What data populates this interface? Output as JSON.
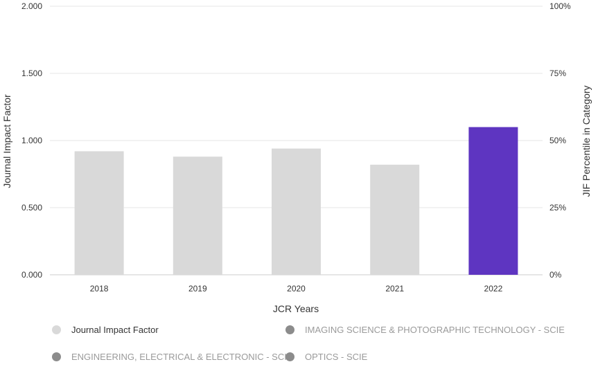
{
  "chart_data": {
    "type": "bar",
    "categories": [
      "2018",
      "2019",
      "2020",
      "2021",
      "2022"
    ],
    "series": [
      {
        "name": "Journal Impact Factor",
        "values": [
          0.92,
          0.88,
          0.94,
          0.82,
          1.1
        ]
      }
    ],
    "bar_colors": [
      "#d9d9d9",
      "#d9d9d9",
      "#d9d9d9",
      "#d9d9d9",
      "#5e35c1"
    ],
    "title": "",
    "xlabel": "JCR Years",
    "ylabel": "Journal Impact Factor",
    "ylabel_right": "JIF Percentile in Category",
    "ylim": [
      0,
      2
    ],
    "y_ticks": [
      "0.000",
      "0.500",
      "1.000",
      "1.500",
      "2.000"
    ],
    "y_ticks_right": [
      "0%",
      "25%",
      "50%",
      "75%",
      "100%"
    ],
    "grid": true,
    "legend_position": "bottom",
    "legend": [
      {
        "label": "Journal Impact Factor",
        "color": "#d9d9d9",
        "text_color": "#333333"
      },
      {
        "label": "IMAGING SCIENCE & PHOTOGRAPHIC TECHNOLOGY - SCIE",
        "color": "#8c8c8c",
        "text_color": "#9a9a9a"
      },
      {
        "label": "ENGINEERING, ELECTRICAL & ELECTRONIC - SCIE",
        "color": "#8c8c8c",
        "text_color": "#9a9a9a"
      },
      {
        "label": "OPTICS - SCIE",
        "color": "#8c8c8c",
        "text_color": "#9a9a9a"
      }
    ]
  }
}
